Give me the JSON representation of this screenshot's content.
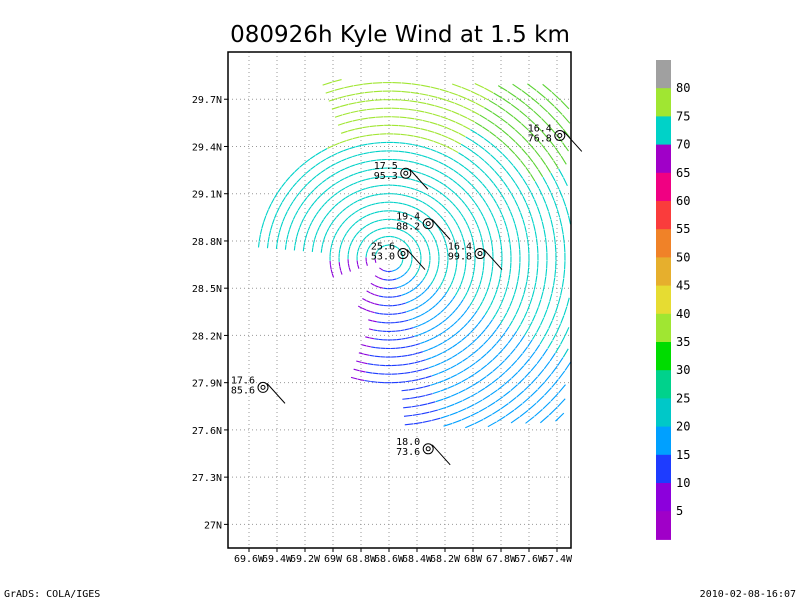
{
  "title": "080926h Kyle Wind at 1.5 km",
  "footer_left": "GrADS: COLA/IGES",
  "footer_right": "2010-02-08-16:07",
  "map": {
    "lat_ticks": [
      "29.7N",
      "29.4N",
      "29.1N",
      "28.8N",
      "28.5N",
      "28.2N",
      "27.9N",
      "27.6N",
      "27.3N",
      "27N"
    ],
    "lon_ticks": [
      "69.6W",
      "69.4W",
      "69.2W",
      "69W",
      "68.8W",
      "68.6W",
      "68.4W",
      "68.2W",
      "68W",
      "67.8W",
      "67.6W",
      "67.4W"
    ],
    "lat_range": [
      26.85,
      30.0
    ],
    "lon_range": [
      -69.75,
      -67.3
    ],
    "grid": "dotted",
    "storm_center": {
      "lat": 28.69,
      "lon": -68.6
    },
    "observations": [
      {
        "id": "obs-1",
        "lat": 29.47,
        "lon": -67.38,
        "line1": "16.4",
        "line2": "76.8"
      },
      {
        "id": "obs-2",
        "lat": 29.23,
        "lon": -68.48,
        "line1": "17.5",
        "line2": "95.3"
      },
      {
        "id": "obs-3",
        "lat": 28.91,
        "lon": -68.32,
        "line1": "19.4",
        "line2": "88.2"
      },
      {
        "id": "obs-4",
        "lat": 28.72,
        "lon": -67.95,
        "line1": "16.4",
        "line2": "99.8"
      },
      {
        "id": "obs-5",
        "lat": 28.72,
        "lon": -68.5,
        "line1": "25.6",
        "line2": "53.0"
      },
      {
        "id": "obs-6",
        "lat": 27.87,
        "lon": -69.5,
        "line1": "17.6",
        "line2": "85.6"
      },
      {
        "id": "obs-7",
        "lat": 27.48,
        "lon": -68.32,
        "line1": "18.0",
        "line2": "73.6"
      }
    ]
  },
  "colorbar": {
    "labels": [
      "80",
      "75",
      "70",
      "65",
      "60",
      "55",
      "50",
      "45",
      "40",
      "35",
      "30",
      "25",
      "20",
      "15",
      "10",
      "5"
    ],
    "colors": [
      "#a0a0a0",
      "#a0e632",
      "#00d2c8",
      "#a000c8",
      "#f00082",
      "#fa3c3c",
      "#f08228",
      "#e6af2d",
      "#e6dc32",
      "#a0e632",
      "#00dc00",
      "#00d28c",
      "#00c8c8",
      "#00a0ff",
      "#1e3cff",
      "#8c00dc",
      "#a000c8"
    ]
  }
}
